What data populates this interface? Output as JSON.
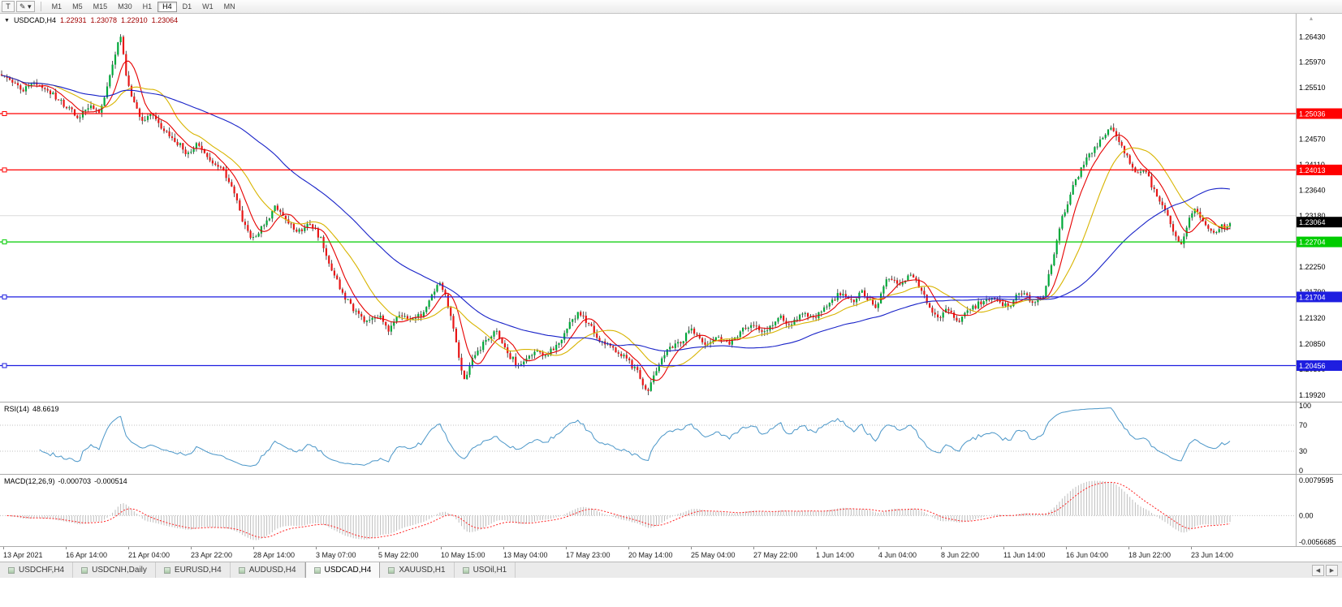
{
  "accent_colors": {
    "up": "#00a83a",
    "down": "#e81717",
    "wick": "#2a2a2a",
    "rsi": "#4a96c8",
    "macd_hist": "#bdbdbd",
    "macd_signal": "#ff2222"
  },
  "misc": {
    "corner_marker": "▴"
  },
  "toolbar": {
    "tools": [
      {
        "id": "text-tool",
        "glyph": "T",
        "caret": ""
      },
      {
        "id": "draw-tool",
        "glyph": "✎",
        "caret": "▾"
      }
    ],
    "timeframes": [
      {
        "label": "M1",
        "active": false
      },
      {
        "label": "M5",
        "active": false
      },
      {
        "label": "M15",
        "active": false
      },
      {
        "label": "M30",
        "active": false
      },
      {
        "label": "H1",
        "active": false
      },
      {
        "label": "H4",
        "active": true
      },
      {
        "label": "D1",
        "active": false
      },
      {
        "label": "W1",
        "active": false
      },
      {
        "label": "MN",
        "active": false
      }
    ]
  },
  "chart_header": {
    "caret": "▼",
    "symbol": "USDCAD,H4",
    "open": "1.22931",
    "high": "1.23078",
    "low": "1.22910",
    "close": "1.23064"
  },
  "tabs": {
    "items": [
      {
        "label": "USDCHF,H4",
        "active": false
      },
      {
        "label": "USDCNH,Daily",
        "active": false
      },
      {
        "label": "EURUSD,H4",
        "active": false
      },
      {
        "label": "AUDUSD,H4",
        "active": false
      },
      {
        "label": "USDCAD,H4",
        "active": true
      },
      {
        "label": "XAUUSD,H1",
        "active": false
      },
      {
        "label": "USOil,H1",
        "active": false
      }
    ],
    "scroll_left": "◀",
    "scroll_right": "▶"
  },
  "chart_data": {
    "type": "candlestick",
    "symbol": "USDCAD",
    "timeframe": "H4",
    "ohlc_display": {
      "open": 1.22931,
      "high": 1.23078,
      "low": 1.2291,
      "close": 1.23064
    },
    "price_axis": {
      "min": 1.198,
      "max": 1.2685,
      "ticks": [
        "1.26430",
        "1.25970",
        "1.25510",
        "1.24570",
        "1.24110",
        "1.23640",
        "1.23180",
        "1.22250",
        "1.21790",
        "1.21320",
        "1.20850",
        "1.20390",
        "1.19920"
      ]
    },
    "grid_price": 1.2318,
    "current_price": {
      "value": 1.23064,
      "label": "1.23064",
      "badge_color": "#000000",
      "text_color": "#ffffff"
    },
    "levels": [
      {
        "price": 1.25036,
        "label": "1.25036",
        "color": "#ff0000"
      },
      {
        "price": 1.24013,
        "label": "1.24013",
        "color": "#ff0000"
      },
      {
        "price": 1.22704,
        "label": "1.22704",
        "color": "#00cc00"
      },
      {
        "price": 1.21704,
        "label": "1.21704",
        "color": "#1e1ee0"
      },
      {
        "price": 1.20456,
        "label": "1.20456",
        "color": "#1e1ee0"
      }
    ],
    "moving_averages": [
      {
        "name": "ma-fast-red",
        "window": 8,
        "color": "#e60000"
      },
      {
        "name": "ma-mid-yellow",
        "window": 20,
        "color": "#d8b400"
      },
      {
        "name": "ma-slow-blue",
        "window": 60,
        "color": "#1822c8"
      }
    ],
    "time_labels": [
      "13 Apr 2021",
      "16 Apr 14:00",
      "21 Apr 04:00",
      "23 Apr 22:00",
      "28 Apr 14:00",
      "3 May 07:00",
      "5 May 22:00",
      "10 May 15:00",
      "13 May 04:00",
      "17 May 23:00",
      "20 May 14:00",
      "25 May 04:00",
      "27 May 22:00",
      "1 Jun 14:00",
      "4 Jun 04:00",
      "8 Jun 22:00",
      "11 Jun 14:00",
      "16 Jun 04:00",
      "18 Jun 22:00",
      "23 Jun 14:00"
    ],
    "price_path": [
      [
        0,
        1.2575
      ],
      [
        25,
        1.2548
      ],
      [
        45,
        1.2562
      ],
      [
        62,
        1.254
      ],
      [
        78,
        1.2518
      ],
      [
        95,
        1.2498
      ],
      [
        108,
        1.2515
      ],
      [
        120,
        1.2502
      ],
      [
        132,
        1.256
      ],
      [
        141,
        1.262
      ],
      [
        147,
        1.2641
      ],
      [
        153,
        1.2572
      ],
      [
        161,
        1.2527
      ],
      [
        172,
        1.249
      ],
      [
        185,
        1.2507
      ],
      [
        200,
        1.2472
      ],
      [
        214,
        1.2455
      ],
      [
        228,
        1.2432
      ],
      [
        242,
        1.2447
      ],
      [
        258,
        1.2415
      ],
      [
        272,
        1.24
      ],
      [
        288,
        1.2352
      ],
      [
        301,
        1.2292
      ],
      [
        312,
        1.2272
      ],
      [
        322,
        1.23
      ],
      [
        337,
        1.2332
      ],
      [
        352,
        1.2302
      ],
      [
        367,
        1.229
      ],
      [
        381,
        1.2307
      ],
      [
        394,
        1.2272
      ],
      [
        407,
        1.2217
      ],
      [
        421,
        1.2172
      ],
      [
        437,
        1.2142
      ],
      [
        451,
        1.2121
      ],
      [
        464,
        1.2137
      ],
      [
        477,
        1.2106
      ],
      [
        491,
        1.2141
      ],
      [
        504,
        1.2126
      ],
      [
        517,
        1.2137
      ],
      [
        529,
        1.2172
      ],
      [
        539,
        1.2202
      ],
      [
        551,
        1.2152
      ],
      [
        561,
        1.2082
      ],
      [
        569,
        1.2016
      ],
      [
        579,
        1.2056
      ],
      [
        594,
        1.2086
      ],
      [
        609,
        1.2106
      ],
      [
        624,
        1.2066
      ],
      [
        639,
        1.2041
      ],
      [
        654,
        1.2071
      ],
      [
        669,
        1.2064
      ],
      [
        684,
        1.2081
      ],
      [
        699,
        1.2121
      ],
      [
        711,
        1.2142
      ],
      [
        725,
        1.2116
      ],
      [
        739,
        1.2086
      ],
      [
        754,
        1.2076
      ],
      [
        769,
        1.2061
      ],
      [
        784,
        1.2031
      ],
      [
        796,
        1.1996
      ],
      [
        807,
        1.2041
      ],
      [
        821,
        1.2076
      ],
      [
        837,
        1.2091
      ],
      [
        851,
        1.2111
      ],
      [
        867,
        1.2086
      ],
      [
        881,
        1.2096
      ],
      [
        897,
        1.2086
      ],
      [
        911,
        1.2111
      ],
      [
        927,
        1.2121
      ],
      [
        941,
        1.2101
      ],
      [
        957,
        1.2136
      ],
      [
        971,
        1.2116
      ],
      [
        987,
        1.2141
      ],
      [
        1001,
        1.2131
      ],
      [
        1017,
        1.2151
      ],
      [
        1031,
        1.2176
      ],
      [
        1047,
        1.2161
      ],
      [
        1061,
        1.2181
      ],
      [
        1077,
        1.2146
      ],
      [
        1091,
        1.2206
      ],
      [
        1107,
        1.2191
      ],
      [
        1121,
        1.2216
      ],
      [
        1137,
        1.2171
      ],
      [
        1151,
        1.2131
      ],
      [
        1164,
        1.2146
      ],
      [
        1179,
        1.2126
      ],
      [
        1194,
        1.2151
      ],
      [
        1209,
        1.2161
      ],
      [
        1223,
        1.2171
      ],
      [
        1239,
        1.2151
      ],
      [
        1254,
        1.2181
      ],
      [
        1269,
        1.2161
      ],
      [
        1282,
        1.2171
      ],
      [
        1292,
        1.2221
      ],
      [
        1304,
        1.2301
      ],
      [
        1317,
        1.2361
      ],
      [
        1329,
        1.2401
      ],
      [
        1341,
        1.2431
      ],
      [
        1354,
        1.2456
      ],
      [
        1367,
        1.2476
      ],
      [
        1377,
        1.2451
      ],
      [
        1387,
        1.2421
      ],
      [
        1397,
        1.2391
      ],
      [
        1407,
        1.2406
      ],
      [
        1417,
        1.2371
      ],
      [
        1427,
        1.2341
      ],
      [
        1437,
        1.2311
      ],
      [
        1445,
        1.2281
      ],
      [
        1454,
        1.2266
      ],
      [
        1462,
        1.2311
      ],
      [
        1471,
        1.2331
      ],
      [
        1481,
        1.2306
      ],
      [
        1491,
        1.2286
      ],
      [
        1501,
        1.2296
      ],
      [
        1515,
        1.2306
      ]
    ],
    "indicators": {
      "rsi": {
        "name": "RSI(14)",
        "value": "48.6619",
        "period": 14,
        "levels": [
          30,
          70
        ],
        "axis_labels": [
          "100",
          "70",
          "30",
          "0"
        ],
        "axis_values": [
          100,
          70,
          30,
          0
        ]
      },
      "macd": {
        "name": "MACD(12,26,9)",
        "value_main": "-0.000703",
        "value_signal": "-0.000514",
        "fast": 12,
        "slow": 26,
        "signal": 9,
        "axis_labels": [
          "0.0079595",
          "0.00",
          "-0.0056685"
        ]
      }
    }
  }
}
